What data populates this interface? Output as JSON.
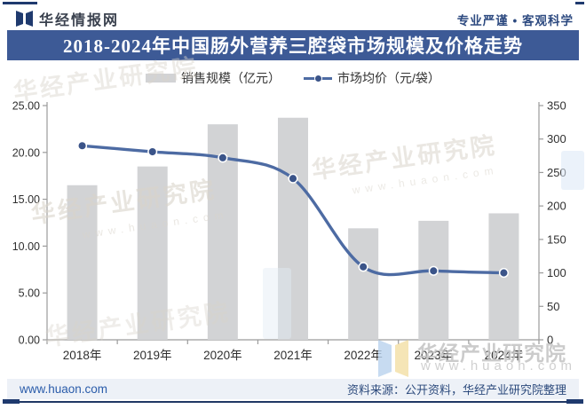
{
  "header": {
    "brand": "华经情报网",
    "tagline": "专业严谨 • 客观科学"
  },
  "title": "2018-2024年中国肠外营养三腔袋市场规模及价格走势",
  "legend": {
    "bar_label": "销售规模（亿元）",
    "line_label": "市场均价（元/袋）"
  },
  "chart_data": {
    "type": "bar",
    "categories": [
      "2018年",
      "2019年",
      "2020年",
      "2021年",
      "2022年",
      "2023年",
      "2024年"
    ],
    "series": [
      {
        "name": "销售规模（亿元）",
        "type": "bar",
        "axis": "left",
        "values": [
          16.5,
          18.5,
          23.0,
          23.7,
          11.9,
          12.7,
          13.5
        ]
      },
      {
        "name": "市场均价（元/袋）",
        "type": "line",
        "axis": "right",
        "values": [
          290,
          281,
          272,
          241,
          109,
          103,
          100
        ]
      }
    ],
    "title": "2018-2024年中国肠外营养三腔袋市场规模及价格走势",
    "xlabel": "",
    "ylabel_left": "亿元",
    "ylabel_right": "元/袋",
    "left_axis": {
      "min": 0,
      "max": 25,
      "step": 5,
      "decimals": 2
    },
    "right_axis": {
      "min": 0,
      "max": 350,
      "step": 50,
      "decimals": 0
    },
    "grid": false,
    "legend_position": "top"
  },
  "colors": {
    "accent_navy": "#3d5a96",
    "cap_navy": "#1f3a6e",
    "bar_fill": "#d2d3d5",
    "line_stroke": "#4d6ba3",
    "dot_fill": "#3b5489",
    "axis_line": "#9b9b9b",
    "tick_text": "#303030",
    "footer_bg": "#edf1f7"
  },
  "watermark": {
    "cn": "华经产业研究院",
    "en": "www.huaon.com"
  },
  "footer": {
    "site": "www.huaon.com",
    "source": "资料来源：公开资料，华经产业研究院整理"
  }
}
